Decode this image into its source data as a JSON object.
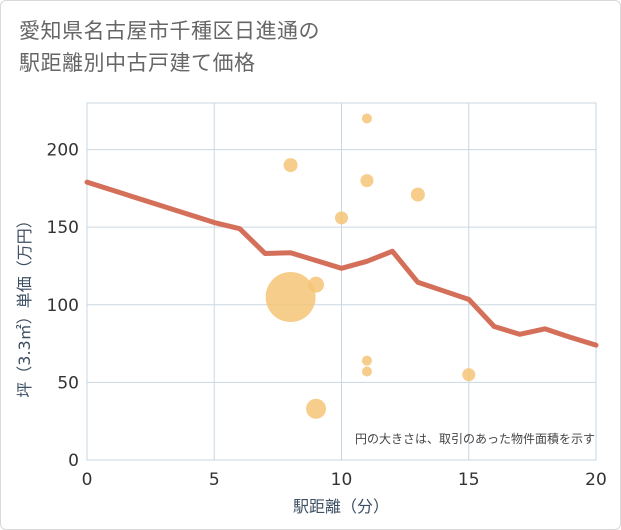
{
  "title": {
    "line1": "愛知県名古屋市千種区日進通の",
    "line2": "駅距離別中古戸建て価格"
  },
  "colors": {
    "line": "#d4705a",
    "bubble": "#f5c476",
    "grid": "#c9d7e3",
    "axis_text": "#333333",
    "label_text": "#3d4f63"
  },
  "chart_data": {
    "type": "scatter",
    "xlabel": "駅距離（分）",
    "ylabel": "坪（3.3㎡）単価（万円）",
    "xlim": [
      0,
      20
    ],
    "ylim": [
      0,
      230
    ],
    "xticks": [
      0,
      5,
      10,
      15,
      20
    ],
    "yticks": [
      0,
      50,
      100,
      150,
      200
    ],
    "annotation": "円の大きさは、取引のあった物件面積を示す",
    "trend_line": {
      "x": [
        0,
        5,
        6,
        7,
        8,
        9,
        10,
        11,
        12,
        13,
        14,
        15,
        16,
        17,
        18,
        19,
        20
      ],
      "y": [
        179,
        153,
        149,
        133,
        133.5,
        128.5,
        123.5,
        128,
        134.5,
        114.5,
        109,
        103.5,
        86,
        81,
        84.5,
        79,
        74
      ]
    },
    "bubbles": [
      {
        "x": 8,
        "y": 105,
        "size": 5.0
      },
      {
        "x": 9,
        "y": 113,
        "size": 1.6
      },
      {
        "x": 9,
        "y": 33,
        "size": 2.0
      },
      {
        "x": 8,
        "y": 190,
        "size": 1.4
      },
      {
        "x": 10,
        "y": 156,
        "size": 1.3
      },
      {
        "x": 11,
        "y": 220,
        "size": 1.0
      },
      {
        "x": 11,
        "y": 180,
        "size": 1.3
      },
      {
        "x": 11,
        "y": 64,
        "size": 1.0
      },
      {
        "x": 11,
        "y": 57,
        "size": 1.0
      },
      {
        "x": 13,
        "y": 171,
        "size": 1.4
      },
      {
        "x": 15,
        "y": 55,
        "size": 1.3
      }
    ]
  }
}
